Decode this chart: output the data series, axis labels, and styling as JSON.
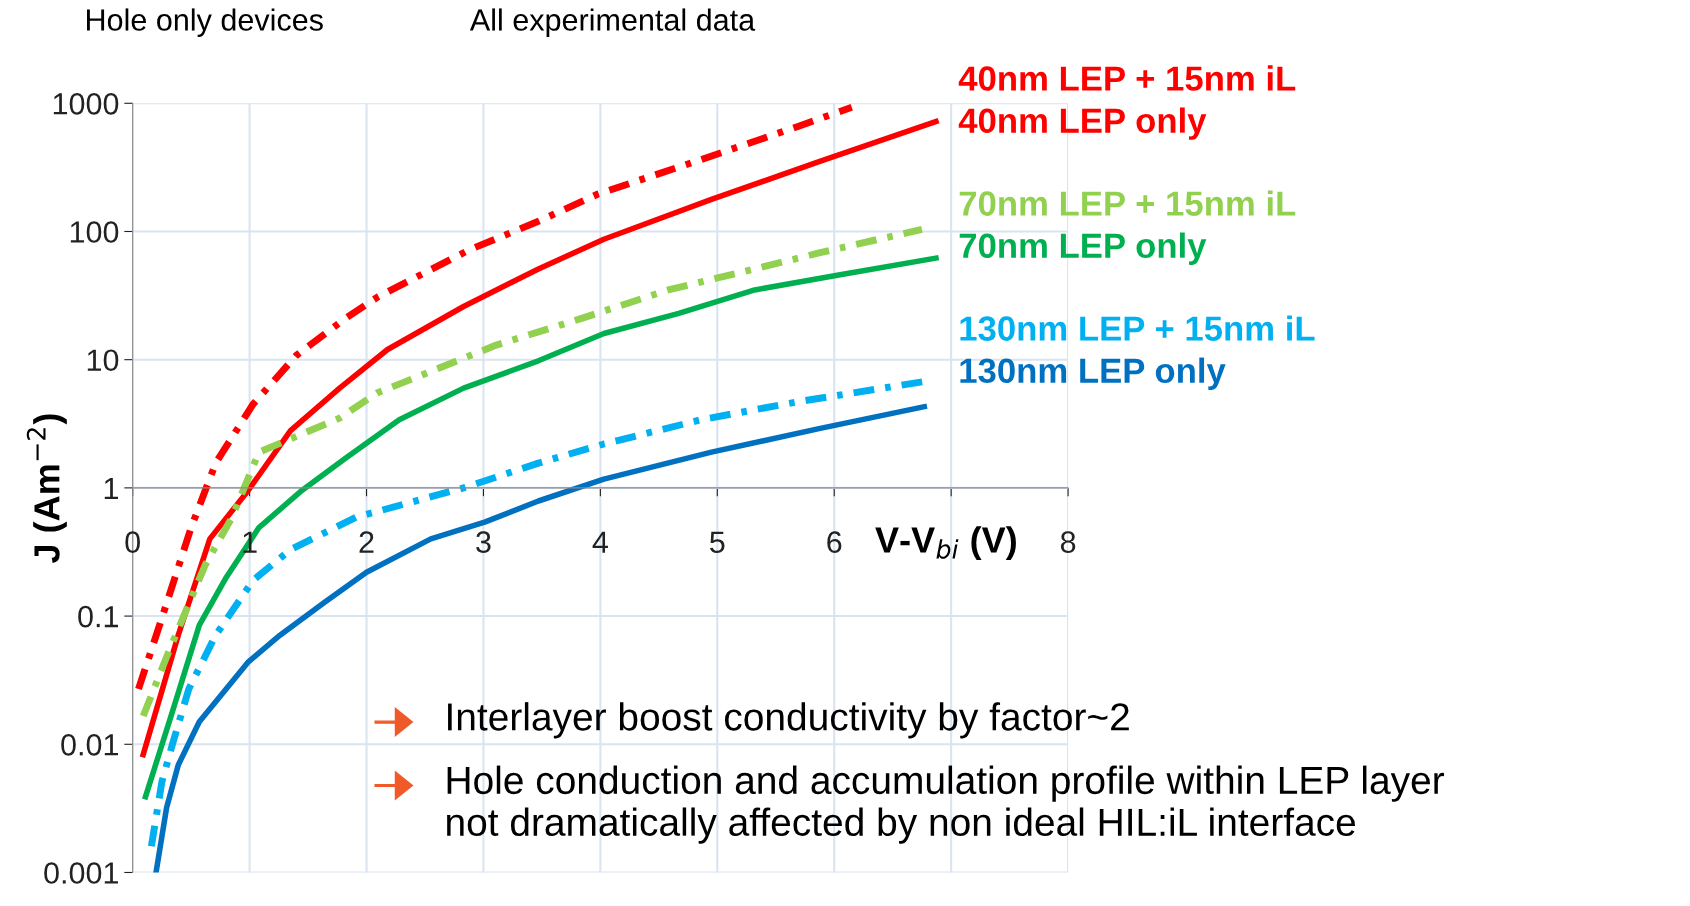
{
  "chart_data": {
    "type": "line",
    "title": "Hole only devices",
    "subtitle": "All experimental data",
    "xlabel": "V-V$_{bi}$ (V)",
    "ylabel": "J (Am$^{−2}$)",
    "log": "y",
    "xlim": [
      0,
      8
    ],
    "ylim": [
      0.001,
      1000
    ],
    "xticks": [
      0,
      1,
      2,
      3,
      4,
      5,
      6,
      {
        "value": 7,
        "label": null
      },
      8
    ],
    "yticks": [
      0.001,
      0.01,
      0.1,
      1,
      10,
      100,
      1000
    ],
    "grid": true,
    "legend": false,
    "series": [
      {
        "name": "40nm LEP + 15nm iL",
        "color": "#ff0000",
        "line_style": "dashed",
        "x": [
          0.05,
          0.23,
          0.5,
          0.71,
          1.03,
          1.4,
          1.82,
          2.1,
          2.88,
          3.47,
          3.98,
          4.86,
          5.69,
          6.15
        ],
        "values": [
          0.027,
          0.085,
          0.49,
          1.56,
          4.5,
          10.8,
          21,
          31,
          72,
          120,
          196,
          363,
          660,
          930
        ]
      },
      {
        "name": "40nm LEP only",
        "color": "#ff0000",
        "line_style": "solid",
        "x": [
          0.09,
          0.39,
          0.66,
          0.99,
          1.35,
          1.77,
          2.18,
          2.83,
          3.47,
          4.03,
          4.95,
          5.87,
          6.87
        ],
        "values": [
          0.0083,
          0.071,
          0.4,
          0.96,
          2.8,
          6,
          12,
          26,
          51,
          87,
          178,
          350,
          720
        ]
      },
      {
        "name": "70nm LEP + 15nm iL",
        "color": "#92d050",
        "line_style": "dashed",
        "x": [
          0.09,
          0.29,
          0.62,
          0.85,
          1.08,
          1.77,
          2.09,
          2.55,
          3.11,
          3.84,
          4.58,
          5.32,
          5.87,
          6.75
        ],
        "values": [
          0.0166,
          0.048,
          0.25,
          0.59,
          1.9,
          3.5,
          5.5,
          8.1,
          13,
          21,
          35,
          51,
          68,
          104
        ]
      },
      {
        "name": "70nm LEP only",
        "color": "#00b050",
        "line_style": "solid",
        "x": [
          0.11,
          0.34,
          0.57,
          0.8,
          1.08,
          1.45,
          1.82,
          2.28,
          2.83,
          3.47,
          4.03,
          4.67,
          5.32,
          6.05,
          6.87
        ],
        "values": [
          0.0039,
          0.018,
          0.085,
          0.2,
          0.49,
          0.96,
          1.7,
          3.4,
          6,
          9.8,
          16,
          23,
          35,
          46,
          62
        ]
      },
      {
        "name": "130nm LEP + 15nm iL",
        "color": "#00b0f0",
        "line_style": "dashed",
        "x": [
          0.16,
          0.25,
          0.34,
          0.48,
          0.71,
          1.03,
          1.35,
          1.91,
          2.83,
          3.47,
          4.03,
          4.86,
          5.69,
          6.79
        ],
        "values": [
          0.0016,
          0.0051,
          0.01,
          0.027,
          0.071,
          0.19,
          0.33,
          0.59,
          1,
          1.56,
          2.2,
          3.4,
          4.7,
          6.8
        ]
      },
      {
        "name": "130nm LEP only",
        "color": "#0070c0",
        "line_style": "solid",
        "x": [
          0.2,
          0.29,
          0.39,
          0.57,
          0.99,
          1.26,
          1.63,
          2,
          2.55,
          3.01,
          3.47,
          4.03,
          4.95,
          5.87,
          6.77
        ],
        "values": [
          0.001,
          0.0032,
          0.0069,
          0.015,
          0.044,
          0.071,
          0.126,
          0.22,
          0.4,
          0.54,
          0.79,
          1.17,
          1.9,
          2.9,
          4.3
        ]
      }
    ],
    "annotations": [
      "Interlayer boost conductivity by factor~2",
      "Hole conduction and accumulation profile within LEP layer\nnot dramatically affected by non ideal HIL:iL interface"
    ]
  }
}
